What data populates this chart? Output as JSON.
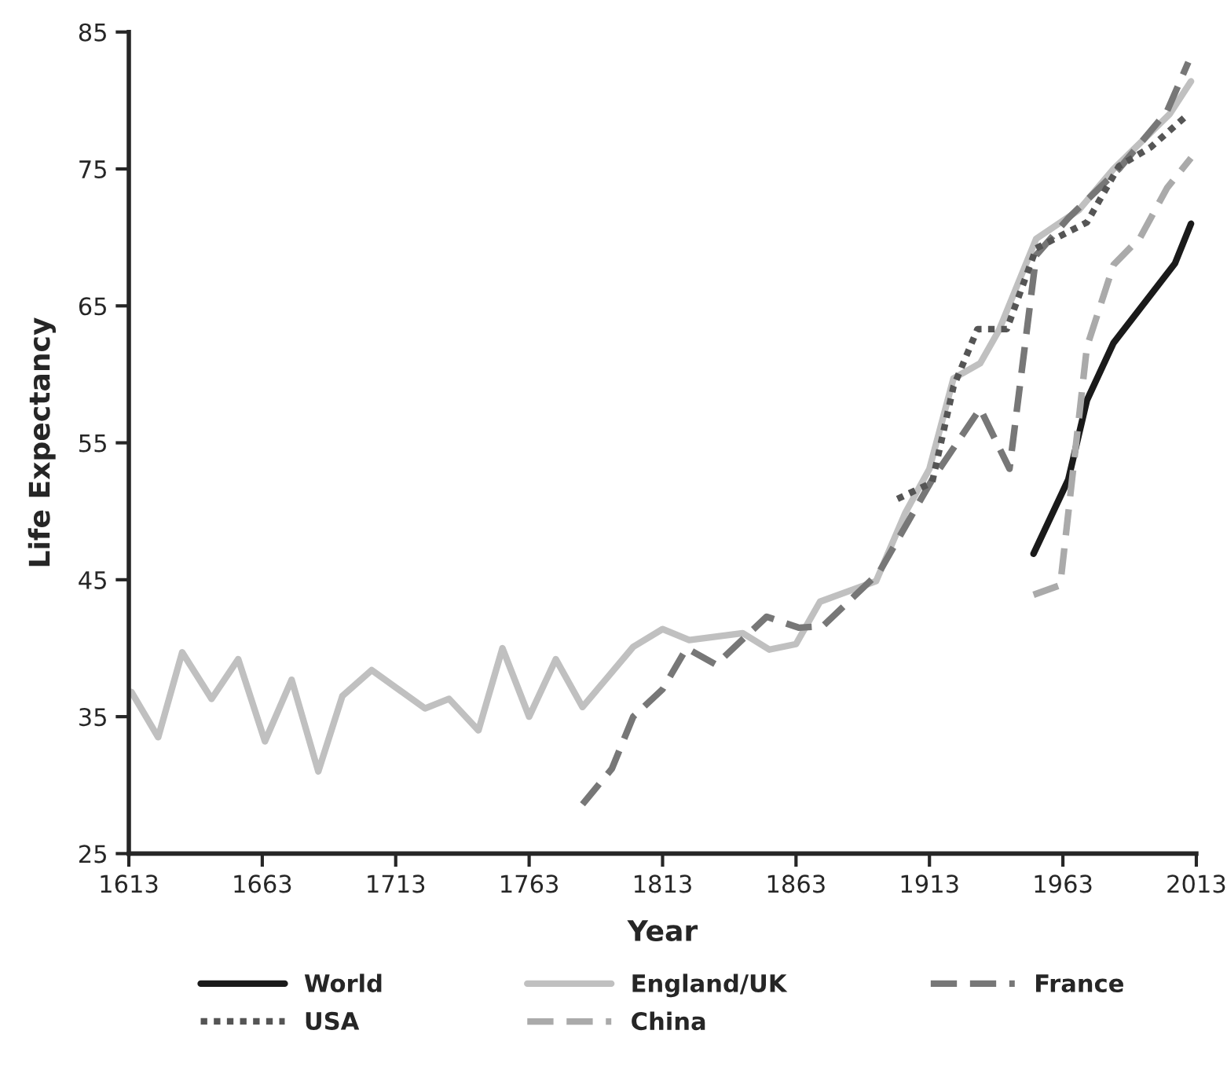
{
  "chart_data": {
    "type": "line",
    "xlabel": "Year",
    "ylabel": "Life Expectancy",
    "xlim": [
      1613,
      2013
    ],
    "xticks": [
      1613,
      1663,
      1713,
      1763,
      1813,
      1863,
      1913,
      1963,
      2013
    ],
    "ylim": [
      25,
      85
    ],
    "yticks": [
      25,
      35,
      45,
      55,
      65,
      75,
      85
    ],
    "grid": false,
    "legend": "bottom",
    "series": [
      {
        "name": "World",
        "color": "#1a1a1a",
        "line_style": "solid",
        "x": [
          1952,
          1965,
          1972,
          1982,
          2005,
          2011
        ],
        "values": [
          46.9,
          52.3,
          58.1,
          62.3,
          68.1,
          71.0
        ]
      },
      {
        "name": "England/UK",
        "color": "#c0c0c0",
        "line_style": "solid",
        "x": [
          1614,
          1624,
          1633,
          1644,
          1654,
          1664,
          1674,
          1684,
          1693,
          1704,
          1724,
          1733,
          1744,
          1753,
          1763,
          1773,
          1783,
          1802,
          1813,
          1823,
          1843,
          1853,
          1863,
          1872,
          1893,
          1904,
          1913,
          1922,
          1932,
          1939,
          1953,
          1969,
          1982,
          2003,
          2011
        ],
        "values": [
          36.8,
          33.5,
          39.7,
          36.3,
          39.2,
          33.2,
          37.7,
          31.0,
          36.5,
          38.4,
          35.6,
          36.3,
          34.0,
          40.0,
          35.0,
          39.2,
          35.7,
          40.1,
          41.4,
          40.6,
          41.1,
          39.9,
          40.3,
          43.4,
          44.9,
          49.9,
          53.1,
          59.7,
          60.8,
          63.2,
          69.9,
          72.0,
          75.0,
          79.0,
          81.4
        ]
      },
      {
        "name": "France",
        "color": "#777777",
        "line_style": "dashed",
        "x": [
          1783,
          1794,
          1802,
          1813,
          1822,
          1833,
          1852,
          1864,
          1873,
          1894,
          1914,
          1932,
          1943,
          1953,
          1965,
          1984,
          2002,
          2010
        ],
        "values": [
          28.6,
          31.2,
          35.0,
          37.0,
          40.0,
          38.8,
          42.3,
          41.5,
          41.6,
          45.5,
          52.3,
          57.5,
          53.1,
          68.7,
          71.4,
          75.0,
          79.2,
          82.8
        ]
      },
      {
        "name": "USA",
        "color": "#555555",
        "line_style": "dotted",
        "x": [
          1901,
          1914,
          1922,
          1931,
          1942,
          1953,
          1972,
          1984,
          1996,
          2010
        ],
        "values": [
          50.9,
          52.1,
          59.1,
          63.3,
          63.3,
          69.2,
          71.1,
          75.2,
          76.6,
          79.0
        ]
      },
      {
        "name": "China",
        "color": "#aaaaaa",
        "line_style": "dashed",
        "x": [
          1952,
          1962,
          1972,
          1982,
          1992,
          2002,
          2011
        ],
        "values": [
          43.9,
          44.6,
          62.0,
          68.0,
          70.0,
          73.6,
          75.8
        ]
      }
    ]
  }
}
